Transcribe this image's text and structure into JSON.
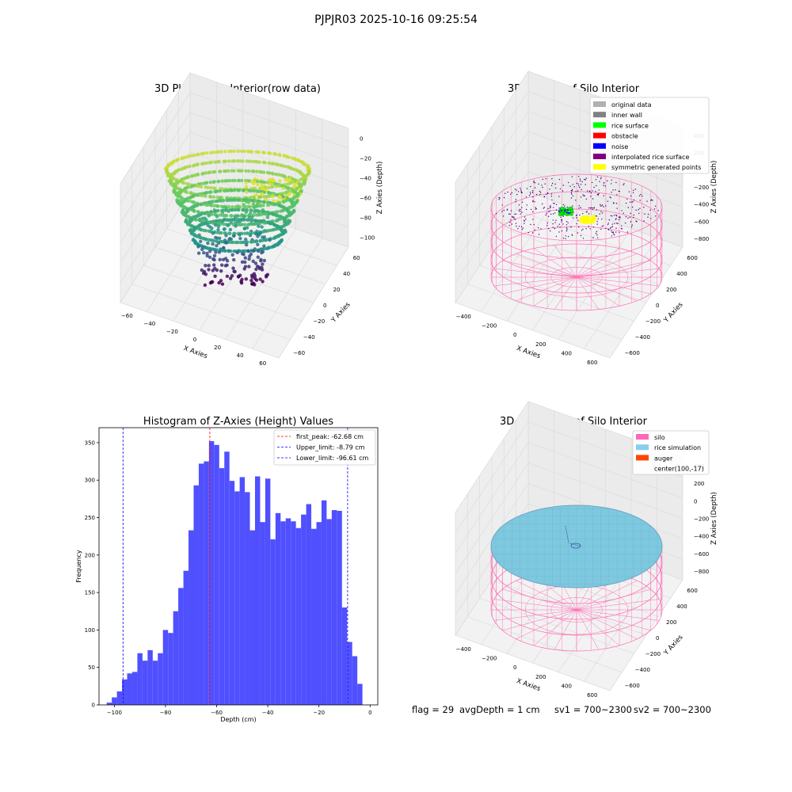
{
  "suptitle": "PJPJR03 2025-10-16 09:25:54",
  "status": {
    "flag": "flag = 29",
    "avg_depth": "avgDepth = 1 cm",
    "sv1": "sv1 = 700~2300",
    "sv2": "sv2 = 700~2300"
  },
  "colors": {
    "histogram_bar": "#4c4cff",
    "first_peak_line": "#ff0000",
    "limit_lines": "#0000ff",
    "silo_wire": "#ff69b4",
    "rice_fill": "#7ec8e0",
    "auger": "#ff4500",
    "rice_surface": "#00ff00",
    "noise": "#0000ff",
    "symmetric": "#ffff00"
  },
  "plots": {
    "raw": {
      "title": "3D Plot of Silo Interior(row data)",
      "xlabel": "X Axies",
      "ylabel": "Y Axies",
      "zlabel": "Z Axies (Depth)",
      "xticks": [
        "−60",
        "−40",
        "−20",
        "0",
        "20",
        "40",
        "60"
      ],
      "yticks": [
        "−60",
        "−40",
        "−20",
        "0",
        "20",
        "40",
        "60"
      ],
      "zticks": [
        "0",
        "−20",
        "−40",
        "−60",
        "−80",
        "−100"
      ],
      "colormap": "viridis"
    },
    "classify": {
      "title": "3D classify of Silo Interior",
      "xlabel": "X Axies",
      "ylabel": "Y Axies",
      "zlabel": "Z Axies (Depth)",
      "xticks": [
        "−400",
        "−200",
        "0",
        "200",
        "400",
        "600"
      ],
      "yticks": [
        "−600",
        "−400",
        "−200",
        "0",
        "200",
        "400",
        "600"
      ],
      "zticks": [
        "400",
        "200",
        "0",
        "−200",
        "−400",
        "−600",
        "−800"
      ],
      "legend": [
        {
          "label": "original data",
          "color": "#b0b0b0"
        },
        {
          "label": "inner wall",
          "color": "#808080"
        },
        {
          "label": "rice surface",
          "color": "#00ff00"
        },
        {
          "label": "obstacle",
          "color": "#ff0000"
        },
        {
          "label": "noise",
          "color": "#0000ff"
        },
        {
          "label": "interpolated rice surface",
          "color": "#800080"
        },
        {
          "label": "symmetric generated points",
          "color": "#ffff00"
        }
      ]
    },
    "simulation": {
      "title": "3D simulation of Silo Interior",
      "xlabel": "X Axies",
      "ylabel": "Y Axies",
      "zlabel": "Z Axies (Depth)",
      "xticks": [
        "−400",
        "−200",
        "0",
        "200",
        "400",
        "600"
      ],
      "yticks": [
        "−600",
        "−400",
        "−200",
        "0",
        "200",
        "400",
        "600"
      ],
      "zticks": [
        "400",
        "200",
        "0",
        "−200",
        "−400",
        "−600",
        "−800"
      ],
      "legend": [
        {
          "label": "silo",
          "color": "#ff69b4"
        },
        {
          "label": "rice simulation",
          "color": "#87ceeb"
        },
        {
          "label": "auger",
          "color": "#ff4500"
        },
        {
          "label": "center(100,-17)",
          "color": null
        }
      ]
    }
  },
  "chart_data": {
    "type": "bar",
    "title": "Histogram of Z-Axies (Height) Values",
    "xlabel": "Depth (cm)",
    "ylabel": "Frequency",
    "xlim": [
      -106,
      3
    ],
    "ylim": [
      0,
      370
    ],
    "xticks": [
      -100,
      -80,
      -60,
      -40,
      -20,
      0
    ],
    "yticks": [
      0,
      50,
      100,
      150,
      200,
      250,
      300,
      350
    ],
    "bin_width": 2,
    "bin_start": -103,
    "values": [
      3,
      10,
      18,
      34,
      42,
      44,
      69,
      59,
      73,
      59,
      69,
      100,
      96,
      125,
      156,
      179,
      233,
      293,
      322,
      325,
      352,
      347,
      316,
      338,
      299,
      285,
      304,
      284,
      233,
      305,
      244,
      302,
      221,
      256,
      245,
      249,
      245,
      236,
      254,
      268,
      235,
      244,
      273,
      248,
      260,
      259,
      130,
      84,
      65,
      28
    ],
    "vlines": [
      {
        "label": "first_peak: -62.68 cm",
        "x": -62.68,
        "color": "#ff0000"
      },
      {
        "label": "Upper_limit: -8.79 cm",
        "x": -8.79,
        "color": "#0000ff"
      },
      {
        "label": "Lower_limit: -96.61 cm",
        "x": -96.61,
        "color": "#0000ff"
      }
    ],
    "legend_position": "top-right",
    "grid": false
  }
}
